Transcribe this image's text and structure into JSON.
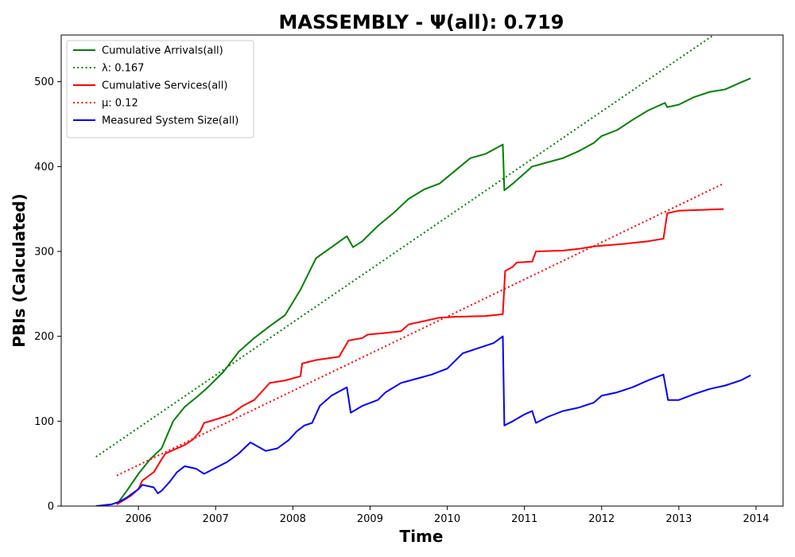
{
  "chart_data": {
    "type": "line",
    "title": "MASSEMBLY -  Ψ(all): 0.719",
    "xlabel": "Time",
    "ylabel": "PBIs (Calculated)",
    "xlim": [
      2005.0,
      2014.35
    ],
    "ylim": [
      0,
      555
    ],
    "x_ticks": [
      "2006",
      "2007",
      "2008",
      "2009",
      "2010",
      "2011",
      "2012",
      "2013",
      "2014"
    ],
    "y_ticks": [
      "0",
      "100",
      "200",
      "300",
      "400",
      "500"
    ],
    "legend_position": "top-left",
    "grid": false,
    "series": [
      {
        "name": "Cumulative Arrivals(all)",
        "color": "#008000",
        "style": "solid",
        "points": [
          [
            2005.72,
            2
          ],
          [
            2005.85,
            18
          ],
          [
            2006.0,
            38
          ],
          [
            2006.15,
            55
          ],
          [
            2006.3,
            68
          ],
          [
            2006.45,
            100
          ],
          [
            2006.6,
            117
          ],
          [
            2006.75,
            128
          ],
          [
            2006.9,
            140
          ],
          [
            2007.1,
            158
          ],
          [
            2007.3,
            182
          ],
          [
            2007.5,
            198
          ],
          [
            2007.7,
            212
          ],
          [
            2007.9,
            225
          ],
          [
            2008.1,
            255
          ],
          [
            2008.3,
            292
          ],
          [
            2008.5,
            305
          ],
          [
            2008.7,
            318
          ],
          [
            2008.78,
            305
          ],
          [
            2008.9,
            312
          ],
          [
            2009.1,
            330
          ],
          [
            2009.3,
            345
          ],
          [
            2009.5,
            362
          ],
          [
            2009.7,
            373
          ],
          [
            2009.9,
            380
          ],
          [
            2010.1,
            395
          ],
          [
            2010.3,
            410
          ],
          [
            2010.5,
            415
          ],
          [
            2010.72,
            426
          ],
          [
            2010.74,
            372
          ],
          [
            2010.85,
            380
          ],
          [
            2011.0,
            392
          ],
          [
            2011.1,
            400
          ],
          [
            2011.3,
            405
          ],
          [
            2011.5,
            410
          ],
          [
            2011.7,
            418
          ],
          [
            2011.9,
            428
          ],
          [
            2012.0,
            436
          ],
          [
            2012.2,
            443
          ],
          [
            2012.4,
            455
          ],
          [
            2012.6,
            466
          ],
          [
            2012.82,
            475
          ],
          [
            2012.85,
            470
          ],
          [
            2013.0,
            473
          ],
          [
            2013.2,
            482
          ],
          [
            2013.4,
            488
          ],
          [
            2013.6,
            491
          ],
          [
            2013.8,
            499
          ],
          [
            2013.93,
            504
          ]
        ]
      },
      {
        "name": "λ: 0.167",
        "color": "#008000",
        "style": "dotted",
        "points": [
          [
            2005.45,
            58
          ],
          [
            2013.45,
            555
          ]
        ]
      },
      {
        "name": "Cumulative Services(all)",
        "color": "#ff0000",
        "style": "solid",
        "points": [
          [
            2005.72,
            2
          ],
          [
            2005.9,
            12
          ],
          [
            2006.0,
            20
          ],
          [
            2006.05,
            30
          ],
          [
            2006.2,
            40
          ],
          [
            2006.3,
            55
          ],
          [
            2006.35,
            62
          ],
          [
            2006.5,
            68
          ],
          [
            2006.6,
            72
          ],
          [
            2006.7,
            78
          ],
          [
            2006.8,
            88
          ],
          [
            2006.85,
            98
          ],
          [
            2007.0,
            102
          ],
          [
            2007.2,
            108
          ],
          [
            2007.35,
            118
          ],
          [
            2007.5,
            125
          ],
          [
            2007.6,
            135
          ],
          [
            2007.7,
            145
          ],
          [
            2007.9,
            148
          ],
          [
            2008.1,
            153
          ],
          [
            2008.12,
            168
          ],
          [
            2008.3,
            172
          ],
          [
            2008.6,
            176
          ],
          [
            2008.72,
            195
          ],
          [
            2008.9,
            198
          ],
          [
            2008.97,
            202
          ],
          [
            2009.2,
            204
          ],
          [
            2009.4,
            206
          ],
          [
            2009.5,
            214
          ],
          [
            2009.7,
            218
          ],
          [
            2009.9,
            222
          ],
          [
            2010.1,
            223
          ],
          [
            2010.5,
            224
          ],
          [
            2010.72,
            226
          ],
          [
            2010.75,
            277
          ],
          [
            2010.85,
            282
          ],
          [
            2010.9,
            287
          ],
          [
            2011.1,
            288
          ],
          [
            2011.15,
            300
          ],
          [
            2011.5,
            301
          ],
          [
            2011.7,
            303
          ],
          [
            2011.9,
            306
          ],
          [
            2012.3,
            309
          ],
          [
            2012.6,
            312
          ],
          [
            2012.8,
            315
          ],
          [
            2012.85,
            345
          ],
          [
            2013.0,
            348
          ],
          [
            2013.58,
            350
          ]
        ]
      },
      {
        "name": "μ: 0.12",
        "color": "#ff0000",
        "style": "dotted",
        "points": [
          [
            2005.72,
            36
          ],
          [
            2013.58,
            380
          ]
        ]
      },
      {
        "name": "Measured System Size(all)",
        "color": "#0000ff",
        "style": "solid",
        "points": [
          [
            2005.45,
            0
          ],
          [
            2005.65,
            2
          ],
          [
            2005.75,
            5
          ],
          [
            2005.85,
            10
          ],
          [
            2006.0,
            20
          ],
          [
            2006.05,
            25
          ],
          [
            2006.2,
            22
          ],
          [
            2006.25,
            15
          ],
          [
            2006.3,
            18
          ],
          [
            2006.4,
            28
          ],
          [
            2006.5,
            40
          ],
          [
            2006.6,
            47
          ],
          [
            2006.75,
            44
          ],
          [
            2006.85,
            38
          ],
          [
            2007.0,
            45
          ],
          [
            2007.15,
            52
          ],
          [
            2007.3,
            62
          ],
          [
            2007.45,
            75
          ],
          [
            2007.55,
            70
          ],
          [
            2007.65,
            65
          ],
          [
            2007.8,
            68
          ],
          [
            2007.95,
            78
          ],
          [
            2008.05,
            88
          ],
          [
            2008.15,
            95
          ],
          [
            2008.25,
            98
          ],
          [
            2008.35,
            118
          ],
          [
            2008.5,
            130
          ],
          [
            2008.7,
            140
          ],
          [
            2008.75,
            110
          ],
          [
            2008.9,
            118
          ],
          [
            2009.1,
            125
          ],
          [
            2009.2,
            134
          ],
          [
            2009.4,
            145
          ],
          [
            2009.6,
            150
          ],
          [
            2009.8,
            155
          ],
          [
            2010.0,
            162
          ],
          [
            2010.2,
            180
          ],
          [
            2010.4,
            186
          ],
          [
            2010.6,
            192
          ],
          [
            2010.72,
            200
          ],
          [
            2010.74,
            95
          ],
          [
            2010.85,
            100
          ],
          [
            2011.0,
            108
          ],
          [
            2011.1,
            112
          ],
          [
            2011.15,
            98
          ],
          [
            2011.3,
            105
          ],
          [
            2011.5,
            112
          ],
          [
            2011.7,
            116
          ],
          [
            2011.9,
            122
          ],
          [
            2012.0,
            130
          ],
          [
            2012.2,
            134
          ],
          [
            2012.4,
            140
          ],
          [
            2012.6,
            148
          ],
          [
            2012.8,
            155
          ],
          [
            2012.86,
            125
          ],
          [
            2013.0,
            125
          ],
          [
            2013.2,
            132
          ],
          [
            2013.4,
            138
          ],
          [
            2013.6,
            142
          ],
          [
            2013.8,
            148
          ],
          [
            2013.93,
            154
          ]
        ]
      }
    ]
  }
}
